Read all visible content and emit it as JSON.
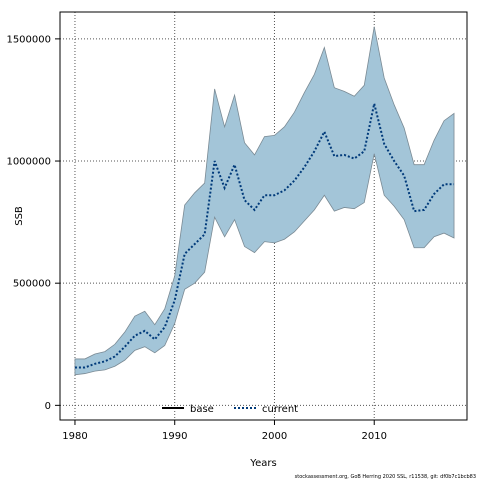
{
  "chart_data": {
    "type": "line",
    "xlabel": "Years",
    "ylabel": "SSB",
    "xlim": [
      1978.5,
      2019.3
    ],
    "ylim": [
      -60000,
      1610000
    ],
    "x_ticks": [
      1980,
      1990,
      2000,
      2010
    ],
    "y_ticks": [
      0,
      500000,
      1000000,
      1500000
    ],
    "y_tick_labels": [
      "0",
      "500000",
      "1000000",
      "1500000"
    ],
    "grid": true,
    "legend": {
      "placement": "bottom-center",
      "entries": [
        {
          "name": "base",
          "style": "solid",
          "color": "#000000"
        },
        {
          "name": "current",
          "style": "dotted",
          "color": "#003a7a"
        }
      ]
    },
    "band_color": "#a3c5d8",
    "x": [
      1980,
      1981,
      1982,
      1983,
      1984,
      1985,
      1986,
      1987,
      1988,
      1989,
      1990,
      1991,
      1992,
      1993,
      1994,
      1995,
      1996,
      1997,
      1998,
      1999,
      2000,
      2001,
      2002,
      2003,
      2004,
      2005,
      2006,
      2007,
      2008,
      2009,
      2010,
      2011,
      2012,
      2013,
      2014,
      2015,
      2016,
      2017,
      2018
    ],
    "series": [
      {
        "name": "current",
        "values": [
          155000,
          155000,
          170000,
          180000,
          200000,
          240000,
          285000,
          305000,
          270000,
          320000,
          430000,
          620000,
          660000,
          700000,
          1000000,
          890000,
          985000,
          840000,
          800000,
          860000,
          860000,
          880000,
          920000,
          975000,
          1040000,
          1120000,
          1020000,
          1025000,
          1010000,
          1040000,
          1235000,
          1070000,
          1000000,
          940000,
          795000,
          800000,
          865000,
          905000,
          905000
        ]
      }
    ],
    "band": {
      "upper": [
        190000,
        190000,
        210000,
        220000,
        250000,
        300000,
        365000,
        385000,
        330000,
        395000,
        530000,
        820000,
        870000,
        910000,
        1295000,
        1140000,
        1270000,
        1075000,
        1025000,
        1100000,
        1105000,
        1140000,
        1200000,
        1280000,
        1355000,
        1465000,
        1300000,
        1285000,
        1265000,
        1310000,
        1550000,
        1340000,
        1230000,
        1135000,
        985000,
        985000,
        1085000,
        1165000,
        1195000
      ],
      "lower": [
        125000,
        130000,
        140000,
        145000,
        160000,
        185000,
        225000,
        240000,
        215000,
        245000,
        335000,
        475000,
        500000,
        545000,
        770000,
        690000,
        760000,
        650000,
        625000,
        670000,
        665000,
        680000,
        710000,
        755000,
        800000,
        860000,
        795000,
        810000,
        805000,
        830000,
        1030000,
        860000,
        815000,
        760000,
        645000,
        645000,
        690000,
        705000,
        685000
      ]
    }
  },
  "footer": {
    "text": "stockassessment.org, GoB Herring 2020 SSL, r11538, git: df0b7c1bcb83"
  }
}
